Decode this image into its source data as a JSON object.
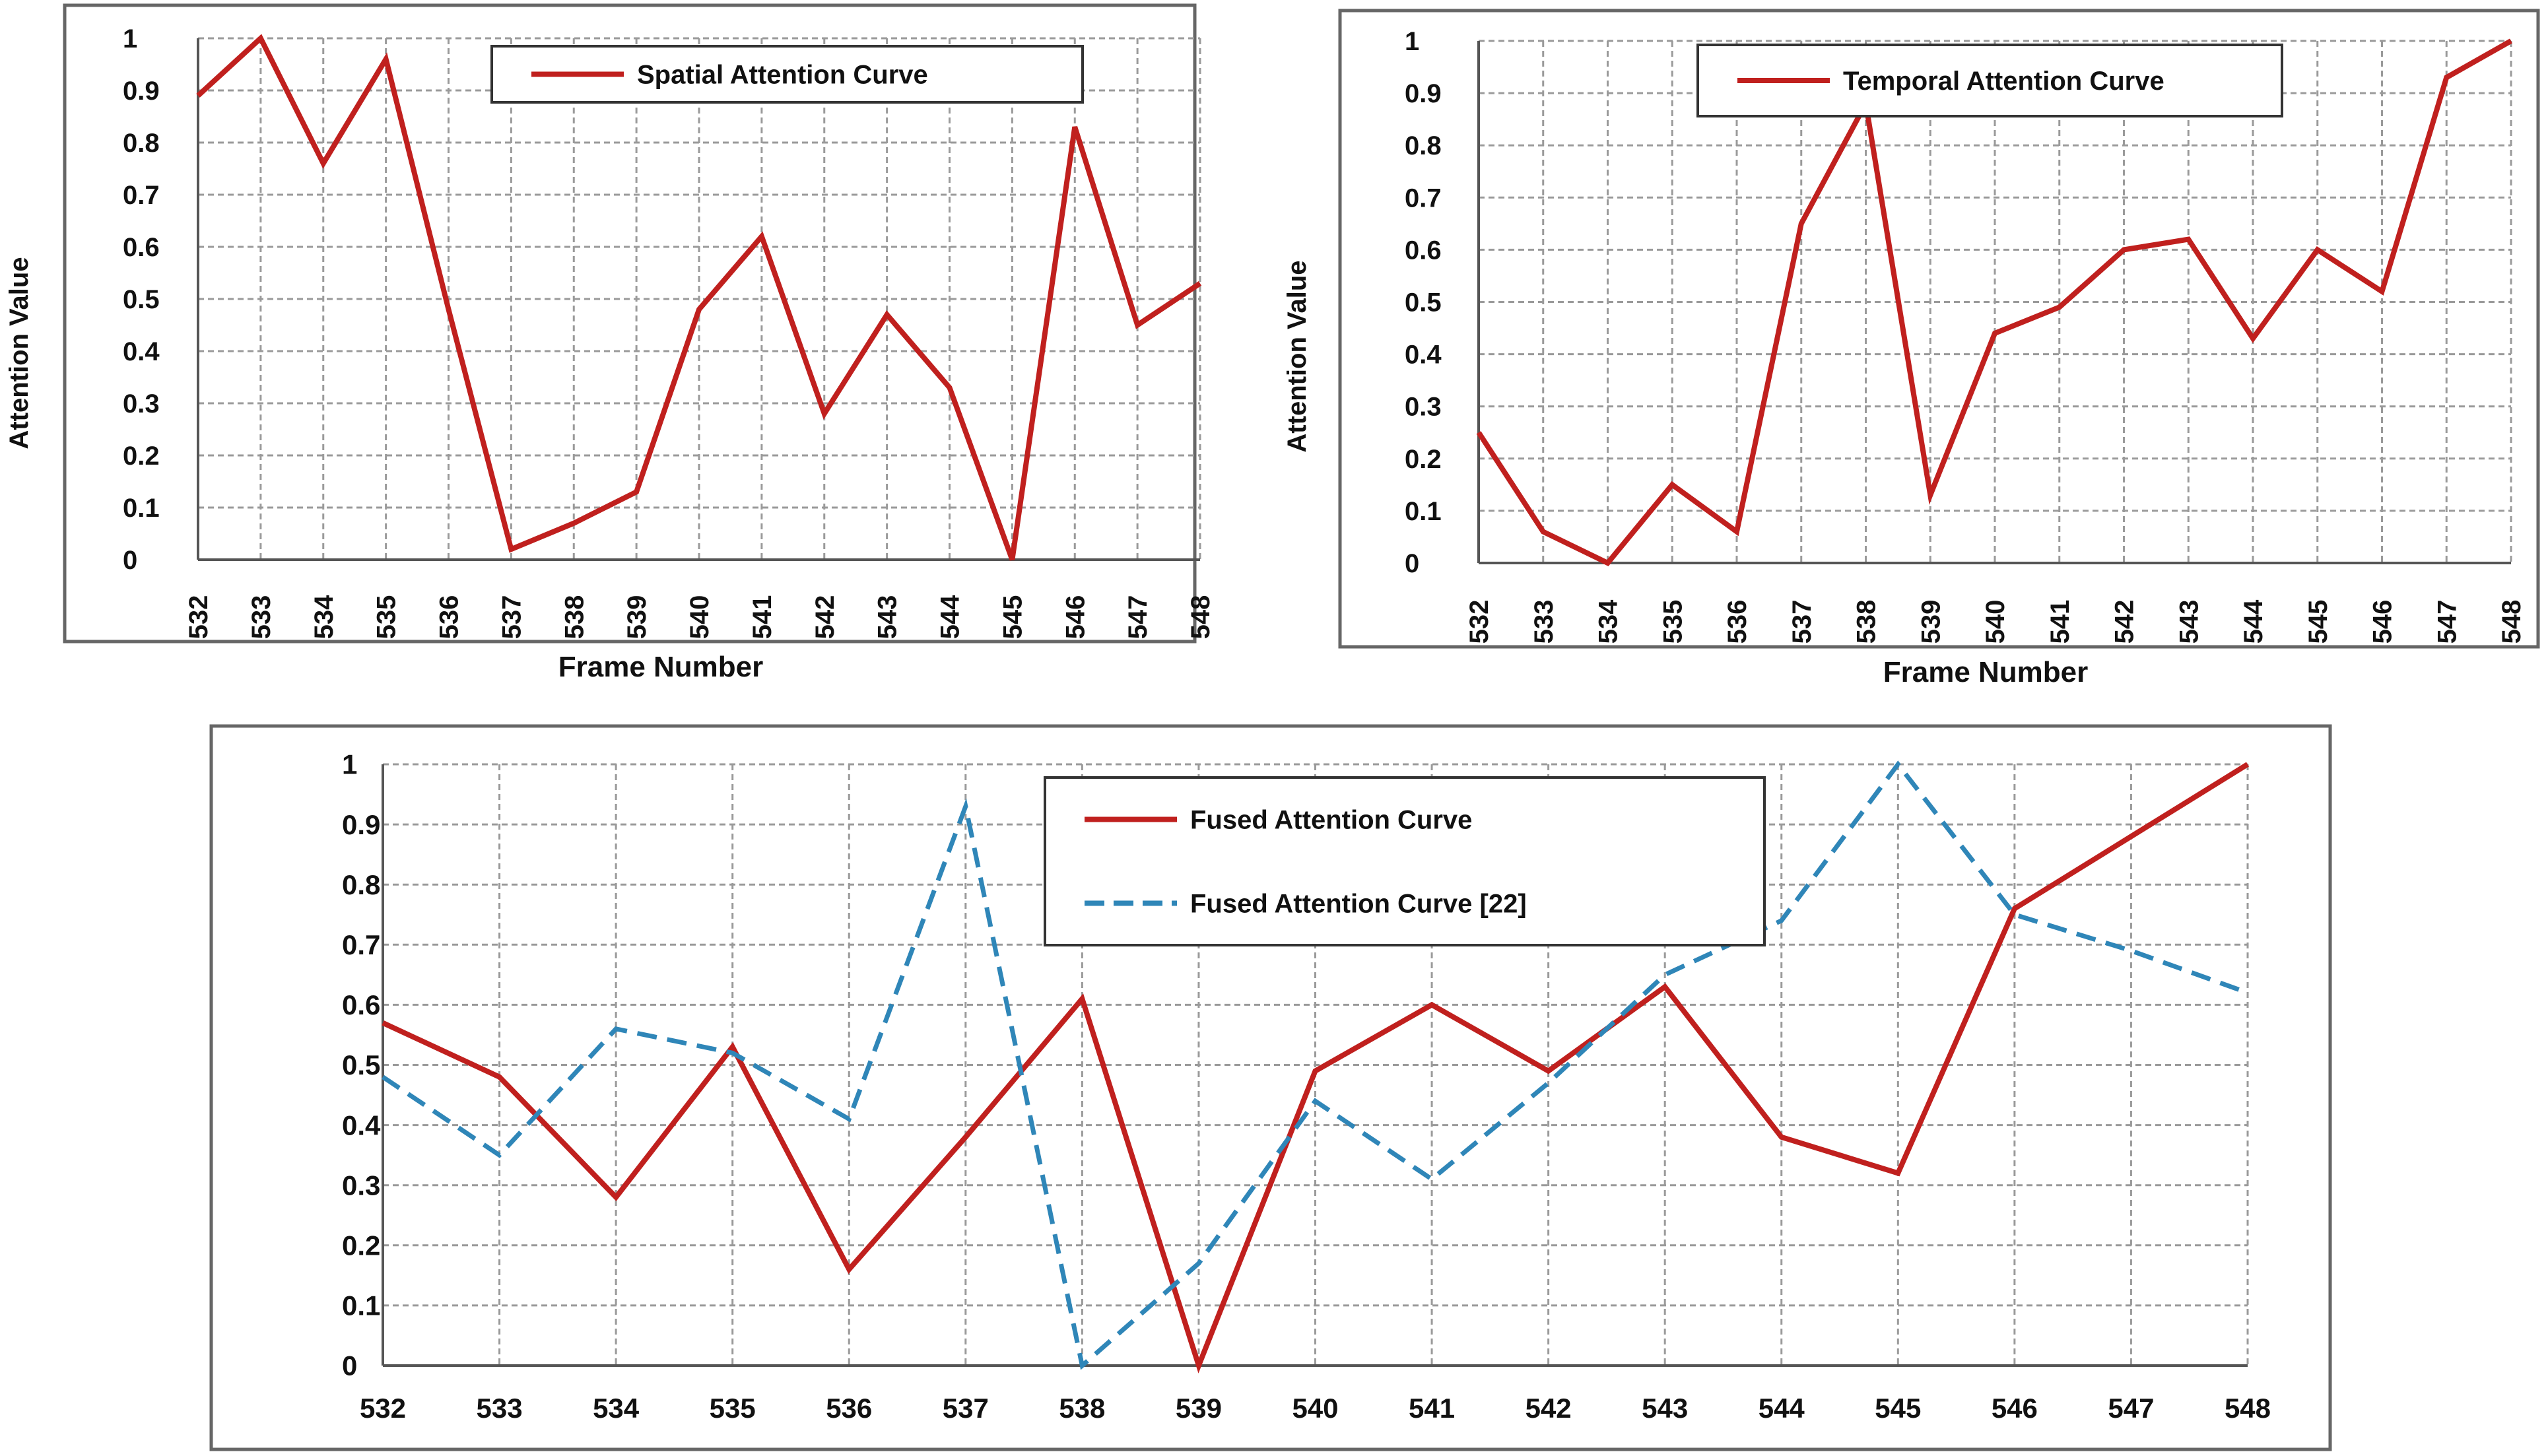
{
  "colors": {
    "fused_red": "#c0201e",
    "ref_blue": "#2f86b8",
    "grid": "#9a9a9a",
    "frame": "#666666"
  },
  "chart_data": [
    {
      "id": "spatial",
      "type": "line",
      "title": "",
      "xlabel": "Frame Number",
      "ylabel": "Attention Value",
      "categories": [
        "532",
        "533",
        "534",
        "535",
        "536",
        "537",
        "538",
        "539",
        "540",
        "541",
        "542",
        "543",
        "544",
        "545",
        "546",
        "547",
        "548"
      ],
      "ylim": [
        0,
        1
      ],
      "yticks": [
        "0",
        "0.1",
        "0.2",
        "0.3",
        "0.4",
        "0.5",
        "0.6",
        "0.7",
        "0.8",
        "0.9",
        "1"
      ],
      "grid": true,
      "legend": "top-center",
      "series": [
        {
          "name": "Spatial Attention Curve",
          "style": "solid",
          "color": "#c0201e",
          "values": [
            0.89,
            1.0,
            0.76,
            0.96,
            0.48,
            0.02,
            0.07,
            0.13,
            0.48,
            0.62,
            0.28,
            0.47,
            0.33,
            0.0,
            0.83,
            0.45,
            0.53
          ]
        }
      ]
    },
    {
      "id": "temporal",
      "type": "line",
      "title": "",
      "xlabel": "Frame Number",
      "ylabel": "Attention Value",
      "categories": [
        "532",
        "533",
        "534",
        "535",
        "536",
        "537",
        "538",
        "539",
        "540",
        "541",
        "542",
        "543",
        "544",
        "545",
        "546",
        "547",
        "548"
      ],
      "ylim": [
        0,
        1
      ],
      "yticks": [
        "0",
        "0.1",
        "0.2",
        "0.3",
        "0.4",
        "0.5",
        "0.6",
        "0.7",
        "0.8",
        "0.9",
        "1"
      ],
      "grid": true,
      "legend": "top-center",
      "series": [
        {
          "name": "Temporal Attention Curve",
          "style": "solid",
          "color": "#c0201e",
          "values": [
            0.25,
            0.06,
            0.0,
            0.15,
            0.06,
            0.65,
            0.88,
            0.13,
            0.44,
            0.49,
            0.6,
            0.62,
            0.43,
            0.6,
            0.52,
            0.93,
            1.0
          ]
        }
      ]
    },
    {
      "id": "fused",
      "type": "line",
      "title": "",
      "xlabel": "",
      "ylabel": "",
      "categories": [
        "532",
        "533",
        "534",
        "535",
        "536",
        "537",
        "538",
        "539",
        "540",
        "541",
        "542",
        "543",
        "544",
        "545",
        "546",
        "547",
        "548"
      ],
      "ylim": [
        0,
        1
      ],
      "yticks": [
        "0",
        "0.1",
        "0.2",
        "0.3",
        "0.4",
        "0.5",
        "0.6",
        "0.7",
        "0.8",
        "0.9",
        "1"
      ],
      "grid": true,
      "legend": "top-center",
      "series": [
        {
          "name": "Fused Attention Curve",
          "style": "solid",
          "color": "#c0201e",
          "values": [
            0.57,
            0.48,
            0.28,
            0.53,
            0.16,
            0.38,
            0.61,
            0.0,
            0.49,
            0.6,
            0.49,
            0.63,
            0.38,
            0.32,
            0.76,
            0.88,
            1.0
          ]
        },
        {
          "name": "Fused Attention Curve [22]",
          "style": "dashed",
          "color": "#2f86b8",
          "values": [
            0.48,
            0.35,
            0.56,
            0.52,
            0.41,
            0.93,
            0.0,
            0.17,
            0.44,
            0.31,
            0.47,
            0.65,
            0.74,
            1.0,
            0.75,
            0.69,
            0.62
          ]
        }
      ]
    }
  ]
}
